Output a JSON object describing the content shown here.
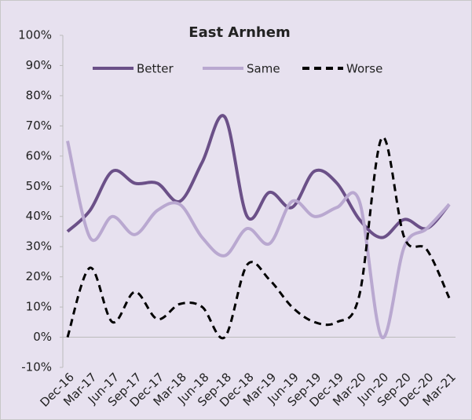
{
  "chart_data": {
    "type": "line",
    "title": "East Arnhem",
    "categories": [
      "Dec-16",
      "Mar-17",
      "Jun-17",
      "Sep-17",
      "Dec-17",
      "Mar-18",
      "Jun-18",
      "Sep-18",
      "Dec-18",
      "Mar-19",
      "Jun-19",
      "Sep-19",
      "Dec-19",
      "Mar-20",
      "Jun-20",
      "Sep-20",
      "Dec-20",
      "Mar-21"
    ],
    "series": [
      {
        "name": "Better",
        "color": "#6b5088",
        "dash": false,
        "values": [
          35,
          42,
          55,
          51,
          51,
          45,
          58,
          73,
          40,
          48,
          43,
          55,
          51,
          39,
          33,
          39,
          36,
          44
        ]
      },
      {
        "name": "Same",
        "color": "#b9a8d0",
        "dash": false,
        "values": [
          65,
          33,
          40,
          34,
          42,
          44,
          33,
          27,
          36,
          31,
          45,
          40,
          43,
          45,
          0,
          30,
          36,
          44
        ]
      },
      {
        "name": "Worse",
        "color": "#000000",
        "dash": true,
        "values": [
          0,
          23,
          5,
          15,
          6,
          11,
          10,
          0,
          24,
          19,
          10,
          5,
          5,
          14,
          66,
          33,
          29,
          13
        ]
      }
    ],
    "ylim": [
      -10,
      100
    ],
    "yticks": [
      {
        "value": -10,
        "label": "-10%"
      },
      {
        "value": 0,
        "label": "0%"
      },
      {
        "value": 10,
        "label": "10%"
      },
      {
        "value": 20,
        "label": "20%"
      },
      {
        "value": 30,
        "label": "30%"
      },
      {
        "value": 40,
        "label": "40%"
      },
      {
        "value": 50,
        "label": "50%"
      },
      {
        "value": 60,
        "label": "60%"
      },
      {
        "value": 70,
        "label": "70%"
      },
      {
        "value": 80,
        "label": "80%"
      },
      {
        "value": 90,
        "label": "90%"
      },
      {
        "value": 100,
        "label": "100%"
      }
    ],
    "legend": "top",
    "background": "#e7e1ef"
  }
}
